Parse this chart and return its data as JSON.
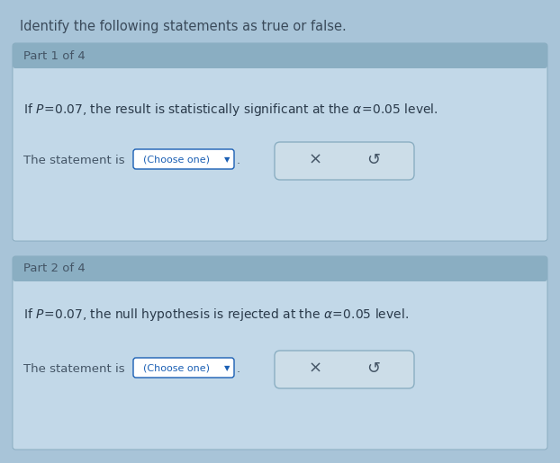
{
  "bg_outer": "#a8c4d8",
  "bg_header": "#8aaec2",
  "bg_content": "#c2d8e8",
  "title_text": "Identify the following statements as true or false.",
  "title_color": "#3a4a5a",
  "title_fontsize": 10.5,
  "part1_header": "Part 1 of 4",
  "part2_header": "Part 2 of 4",
  "part1_stmt1": "If ",
  "part1_stmt2": "P",
  "part1_stmt3": "=0.07, the result is statistically significant at the ",
  "part1_stmt4": "α = 0.05",
  "part1_stmt5": " level.",
  "part2_stmt3": "=0.07, the null hypothesis is rejected at the ",
  "part_label": "The statement is",
  "choose_text": "(Choose one)",
  "dropdown_color": "#1a5fb4",
  "box_bg": "#ccdde8",
  "box_border": "#8aaec2",
  "x_symbol": "×",
  "refresh_symbol": "↺",
  "symbol_color": "#445566",
  "header_text_color": "#445566",
  "stmt_text_color": "#2a3a4a",
  "label_text_color": "#445566",
  "part_fontsize": 9.5,
  "stmt_fontsize": 10,
  "label_fontsize": 9.5
}
